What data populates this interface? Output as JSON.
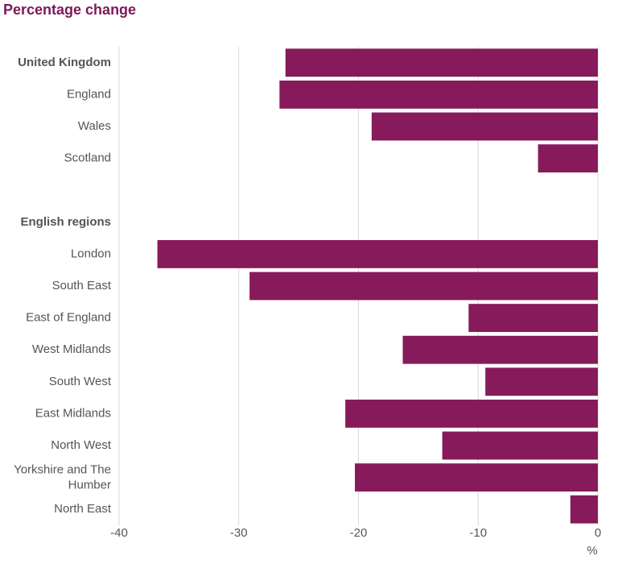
{
  "chart_data": {
    "type": "barh",
    "title": "Percentage change",
    "categories": [
      "United Kingdom",
      "England",
      "Wales",
      "Scotland",
      null,
      "English regions",
      "London",
      "South East",
      "East of England",
      "West Midlands",
      "South West",
      "East Midlands",
      "North West",
      "Yorkshire and The Humber",
      "North East"
    ],
    "values": [
      -26.1,
      -26.6,
      -18.9,
      -5.0,
      null,
      null,
      -36.8,
      -29.1,
      -10.8,
      -16.3,
      -9.4,
      -21.1,
      -13.0,
      -20.3,
      -2.3
    ],
    "bold_categories": [
      0,
      5
    ],
    "color": "#871a5b",
    "xlim": [
      -40,
      0
    ],
    "xticks": [
      -40,
      -30,
      -20,
      -10,
      0
    ],
    "xlabel": "%",
    "grid": true
  }
}
